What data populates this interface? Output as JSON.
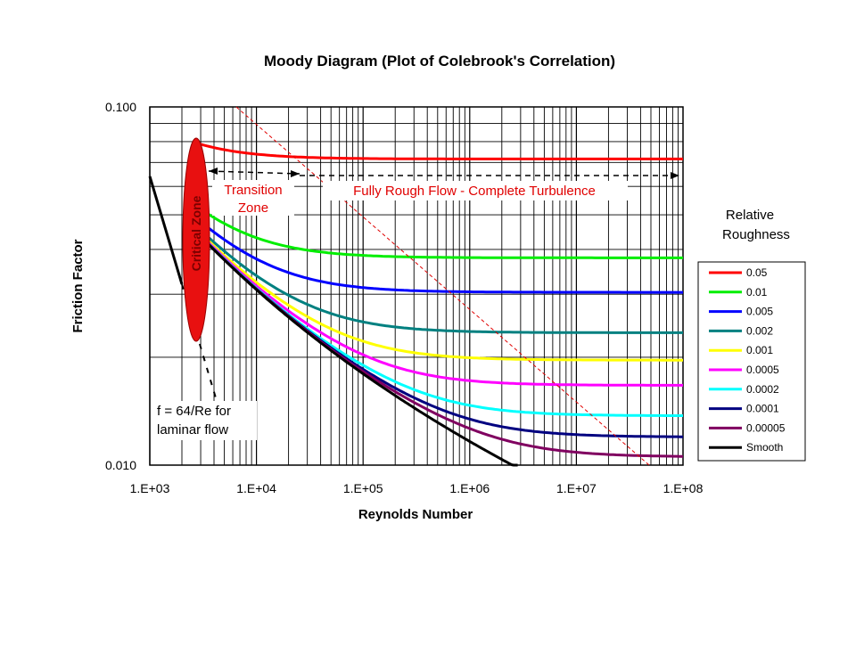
{
  "chart_data": {
    "type": "line",
    "title": "Moody Diagram (Plot of Colebrook's Correlation)",
    "xlabel": "Reynolds Number",
    "ylabel": "Friction Factor",
    "x_scale": "log",
    "y_scale": "log",
    "xlim": [
      1000,
      100000000
    ],
    "ylim": [
      0.01,
      0.1
    ],
    "x_ticks": [
      "1.E+03",
      "1.E+04",
      "1.E+05",
      "1.E+06",
      "1.E+07",
      "1.E+08"
    ],
    "y_ticks": [
      "0.100",
      "0.010"
    ],
    "grid": true,
    "legend": {
      "title_line1": "Relative",
      "title_line2": "Roughness",
      "placement": "right"
    },
    "annotations": {
      "transition_line1": "Transition",
      "transition_line2": "Zone",
      "fully_rough": "Fully Rough Flow - Complete Turbulence",
      "critical_zone": "Critical Zone",
      "laminar_line1": "f = 64/Re for",
      "laminar_line2": "laminar flow"
    },
    "series": [
      {
        "name": "0.05",
        "color": "#ff0000",
        "roughness": 0.05
      },
      {
        "name": "0.01",
        "color": "#00ee00",
        "roughness": 0.01
      },
      {
        "name": "0.005",
        "color": "#0000ff",
        "roughness": 0.005
      },
      {
        "name": "0.002",
        "color": "#008080",
        "roughness": 0.002
      },
      {
        "name": "0.001",
        "color": "#ffff00",
        "roughness": 0.001
      },
      {
        "name": "0.0005",
        "color": "#ff00ff",
        "roughness": 0.0005
      },
      {
        "name": "0.0002",
        "color": "#00ffff",
        "roughness": 0.0002
      },
      {
        "name": "0.0001",
        "color": "#000080",
        "roughness": 0.0001
      },
      {
        "name": "0.00005",
        "color": "#800060",
        "roughness": 5e-05
      },
      {
        "name": "Smooth",
        "color": "#000000",
        "roughness": 0
      }
    ],
    "colors": {
      "critical_zone_fill": "#e81010",
      "fully_rough_boundary": "#e00000",
      "laminar": "#000000"
    }
  }
}
